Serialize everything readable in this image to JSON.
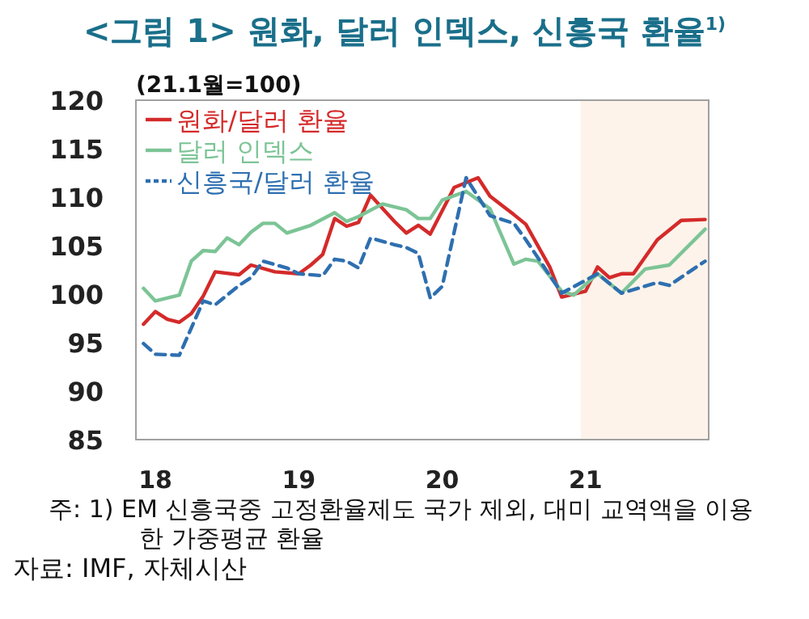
{
  "chart_data": {
    "type": "line",
    "title": "<그림 1> 원화, 달러 인덱스, 신흥국 환율$^{1)}$",
    "subtitle": "(21.1월=100)",
    "xlim": [
      "2017-11-12",
      "2021-11-10"
    ],
    "xticks": [
      {
        "value": "2018-01",
        "label": "18"
      },
      {
        "value": "2019-01",
        "label": "19"
      },
      {
        "value": "2020-01",
        "label": "20"
      },
      {
        "value": "2021-01",
        "label": "21"
      }
    ],
    "ylim": [
      85,
      120
    ],
    "yticks": [
      85,
      90,
      95,
      100,
      105,
      110,
      115,
      120
    ],
    "grid": false,
    "legend": "top left",
    "bands": [
      {
        "axis": "x",
        "from": "2020-12-19",
        "to": "2021-11-10",
        "color": "#fdf3ea"
      }
    ],
    "series": [
      {
        "name": "원화/달러 환율",
        "color": "#d42a2a",
        "line_style": "solid",
        "x": [
          "2017-12",
          "2018-01",
          "2018-02",
          "2018-03",
          "2018-04",
          "2018-05",
          "2018-06",
          "2018-08",
          "2018-09",
          "2018-11",
          "2019-01",
          "2019-02",
          "2019-03",
          "2019-04",
          "2019-05",
          "2019-06",
          "2019-07",
          "2019-09",
          "2019-10",
          "2019-11",
          "2019-12",
          "2020-02",
          "2020-04",
          "2020-05",
          "2020-07",
          "2020-08",
          "2020-10",
          "2020-11",
          "2021-01",
          "2021-02",
          "2021-03",
          "2021-04",
          "2021-05",
          "2021-07",
          "2021-09",
          "2021-11"
        ],
        "values": [
          96.9,
          98.2,
          97.4,
          97.1,
          98,
          99.8,
          102.3,
          102,
          103,
          102.3,
          102.1,
          103,
          104.1,
          107.8,
          107,
          107.4,
          110.2,
          107.5,
          106.3,
          107.1,
          106.2,
          111,
          112,
          110.1,
          108.2,
          107.2,
          102.8,
          99.7,
          100.3,
          102.8,
          101.7,
          102.1,
          102.1,
          105.6,
          107.6,
          107.7
        ]
      },
      {
        "name": "달러 인덱스",
        "color": "#7cc496",
        "line_style": "solid",
        "x": [
          "2017-12",
          "2018-01",
          "2018-03",
          "2018-04",
          "2018-05",
          "2018-06",
          "2018-07",
          "2018-08",
          "2018-09",
          "2018-10",
          "2018-11",
          "2018-12",
          "2019-02",
          "2019-04",
          "2019-05",
          "2019-06",
          "2019-08",
          "2019-10",
          "2019-11",
          "2019-12",
          "2020-01",
          "2020-03",
          "2020-05",
          "2020-07",
          "2020-08",
          "2020-09",
          "2020-11",
          "2020-12",
          "2021-02",
          "2021-04",
          "2021-06",
          "2021-08",
          "2021-11"
        ],
        "values": [
          100.6,
          99.3,
          99.9,
          103.4,
          104.5,
          104.4,
          105.8,
          105.1,
          106.4,
          107.3,
          107.3,
          106.3,
          107.1,
          108.4,
          107.5,
          108,
          109.3,
          108.7,
          107.8,
          107.8,
          109.7,
          110.6,
          108.8,
          103.1,
          103.6,
          103.4,
          100.3,
          99.9,
          102.1,
          100.1,
          102.6,
          103,
          106.7
        ]
      },
      {
        "name": "신흥국/달러 환율",
        "color": "#2e6fb0",
        "line_style": "dashed",
        "x": [
          "2017-12",
          "2018-01",
          "2018-03",
          "2018-05",
          "2018-06",
          "2018-08",
          "2018-09",
          "2018-10",
          "2018-12",
          "2019-01",
          "2019-03",
          "2019-04",
          "2019-05",
          "2019-06",
          "2019-07",
          "2019-09",
          "2019-10",
          "2019-11",
          "2019-12",
          "2020-01",
          "2020-03",
          "2020-05",
          "2020-07",
          "2020-08",
          "2020-11",
          "2021-02",
          "2021-04",
          "2021-07",
          "2021-08",
          "2021-11"
        ],
        "values": [
          94.9,
          93.8,
          93.7,
          99.3,
          98.9,
          100.9,
          101.7,
          103.4,
          102.7,
          102.1,
          101.9,
          103.6,
          103.4,
          102.7,
          105.8,
          105.1,
          104.8,
          104.2,
          99.6,
          100.8,
          112,
          108.1,
          107.3,
          105.6,
          100.1,
          102.1,
          100.1,
          101.2,
          100.9,
          103.4
        ]
      }
    ],
    "annotations": [
      "주: 1) EM 신흥국중 고정환율제도 국가 제외, 대미 교역액을 이용한 가중평균 환율",
      "자료: IMF, 자체시산"
    ]
  }
}
